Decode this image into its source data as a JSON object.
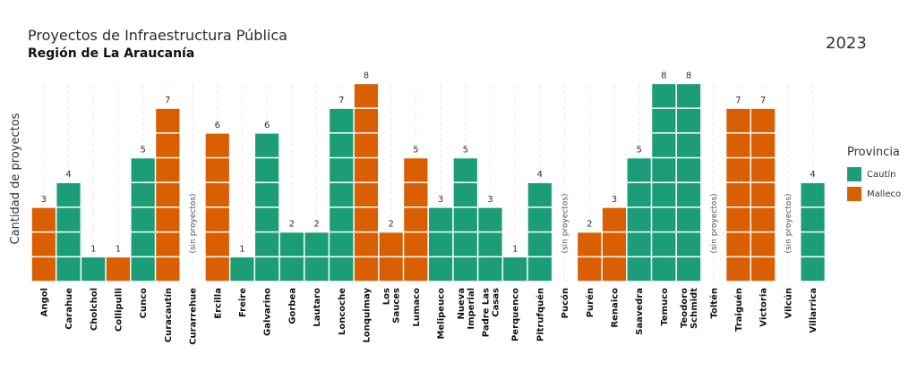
{
  "title": "Proyectos de Infraestructura Pública",
  "subtitle": "Región de La Araucanía",
  "year": "2023",
  "legend": {
    "title": "Provincia",
    "items": [
      {
        "label": "Cautín",
        "color": "#1b9e77"
      },
      {
        "label": "Malleco",
        "color": "#d95f02"
      }
    ]
  },
  "chart_data": {
    "type": "bar",
    "ylabel": "Cantidad de proyectos",
    "xlabel": "",
    "ylim": [
      0,
      8
    ],
    "grid": true,
    "legend_position": "right",
    "no_data_label": "(sin proyectos)",
    "categories": [
      "Angol",
      "Carahue",
      "Cholchol",
      "Collipulli",
      "Cunco",
      "Curacautín",
      "Curarrehue",
      "Ercilla",
      "Freire",
      "Galvarino",
      "Gorbea",
      "Lautaro",
      "Loncoche",
      "Lonquimay",
      "Los Sauces",
      "Lumaco",
      "Melipeuco",
      "Nueva Imperial",
      "Padre Las Casas",
      "Perquenco",
      "Pitrufquén",
      "Pucón",
      "Purén",
      "Renaico",
      "Saavedra",
      "Temuco",
      "Teodoro Schmidt",
      "Toltén",
      "Traiguén",
      "Victoria",
      "Vilcún",
      "Villarrica"
    ],
    "values": [
      3,
      4,
      1,
      1,
      5,
      7,
      0,
      6,
      1,
      6,
      2,
      2,
      7,
      8,
      2,
      5,
      3,
      5,
      3,
      1,
      4,
      0,
      2,
      3,
      5,
      8,
      8,
      0,
      7,
      7,
      0,
      4
    ],
    "provincia": [
      "Malleco",
      "Cautín",
      "Cautín",
      "Malleco",
      "Cautín",
      "Malleco",
      "Cautín",
      "Malleco",
      "Cautín",
      "Cautín",
      "Cautín",
      "Cautín",
      "Cautín",
      "Malleco",
      "Malleco",
      "Malleco",
      "Cautín",
      "Cautín",
      "Cautín",
      "Cautín",
      "Cautín",
      "Cautín",
      "Malleco",
      "Malleco",
      "Cautín",
      "Cautín",
      "Cautín",
      "Cautín",
      "Malleco",
      "Malleco",
      "Cautín",
      "Cautín"
    ]
  }
}
